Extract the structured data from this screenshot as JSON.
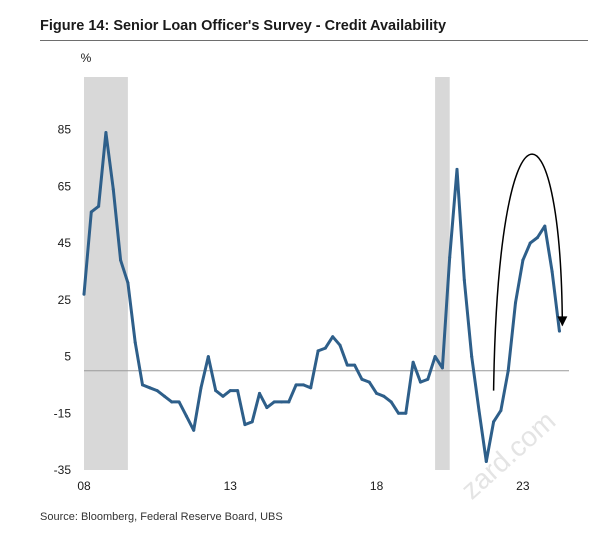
{
  "title": "Figure 14: Senior Loan Officer's Survey - Credit Availability",
  "source": "Source: Bloomberg, Federal Reserve Board, UBS",
  "watermark": "zard.com",
  "colors": {
    "line": "#2e5f8a",
    "recession": "#d8d8d8",
    "zero_line": "#9a9a9a",
    "arrow": "#000000"
  },
  "chart_data": {
    "type": "line",
    "title": "Figure 14: Senior Loan Officer's Survey - Credit Availability",
    "ylabel": "%",
    "xlabel": "",
    "ylim": [
      -35,
      105
    ],
    "xlim": [
      2008.0,
      2025.5
    ],
    "y_ticks": [
      85,
      65,
      45,
      25,
      5,
      -15,
      -35
    ],
    "x_ticks": [
      {
        "value": 2008,
        "label": "08"
      },
      {
        "value": 2013,
        "label": "13"
      },
      {
        "value": 2018,
        "label": "18"
      },
      {
        "value": 2023,
        "label": "23"
      }
    ],
    "reference_line": 0,
    "recession_bands": [
      [
        2008.0,
        2009.5
      ],
      [
        2020.0,
        2020.5
      ]
    ],
    "series": [
      {
        "name": "Credit Availability",
        "points": [
          [
            2008.0,
            27
          ],
          [
            2008.25,
            56
          ],
          [
            2008.5,
            58
          ],
          [
            2008.75,
            84
          ],
          [
            2009.0,
            64
          ],
          [
            2009.25,
            39
          ],
          [
            2009.5,
            31
          ],
          [
            2009.75,
            10
          ],
          [
            2010.0,
            -5
          ],
          [
            2010.25,
            -6
          ],
          [
            2010.5,
            -7
          ],
          [
            2010.75,
            -9
          ],
          [
            2011.0,
            -11
          ],
          [
            2011.25,
            -11
          ],
          [
            2011.5,
            -16
          ],
          [
            2011.75,
            -21
          ],
          [
            2012.0,
            -6
          ],
          [
            2012.25,
            5
          ],
          [
            2012.5,
            -7
          ],
          [
            2012.75,
            -9
          ],
          [
            2013.0,
            -7
          ],
          [
            2013.25,
            -7
          ],
          [
            2013.5,
            -19
          ],
          [
            2013.75,
            -18
          ],
          [
            2014.0,
            -8
          ],
          [
            2014.25,
            -13
          ],
          [
            2014.5,
            -11
          ],
          [
            2014.75,
            -11
          ],
          [
            2015.0,
            -11
          ],
          [
            2015.25,
            -5
          ],
          [
            2015.5,
            -5
          ],
          [
            2015.75,
            -6
          ],
          [
            2016.0,
            7
          ],
          [
            2016.25,
            8
          ],
          [
            2016.5,
            12
          ],
          [
            2016.75,
            9
          ],
          [
            2017.0,
            2
          ],
          [
            2017.25,
            2
          ],
          [
            2017.5,
            -3
          ],
          [
            2017.75,
            -4
          ],
          [
            2018.0,
            -8
          ],
          [
            2018.25,
            -9
          ],
          [
            2018.5,
            -11
          ],
          [
            2018.75,
            -15
          ],
          [
            2019.0,
            -15
          ],
          [
            2019.25,
            3
          ],
          [
            2019.5,
            -4
          ],
          [
            2019.75,
            -3
          ],
          [
            2020.0,
            5
          ],
          [
            2020.25,
            1
          ],
          [
            2020.5,
            40
          ],
          [
            2020.75,
            71
          ],
          [
            2021.0,
            32
          ],
          [
            2021.25,
            5
          ],
          [
            2021.5,
            -14
          ],
          [
            2021.75,
            -32
          ],
          [
            2022.0,
            -18
          ],
          [
            2022.25,
            -14
          ],
          [
            2022.5,
            0
          ],
          [
            2022.75,
            24
          ],
          [
            2023.0,
            39
          ],
          [
            2023.25,
            45
          ],
          [
            2023.5,
            47
          ],
          [
            2023.75,
            51
          ],
          [
            2024.0,
            35
          ],
          [
            2024.25,
            14
          ]
        ]
      }
    ],
    "annotations": [
      {
        "type": "curved-arrow",
        "description": "arc over 2022-2024 peak pointing down"
      }
    ]
  }
}
